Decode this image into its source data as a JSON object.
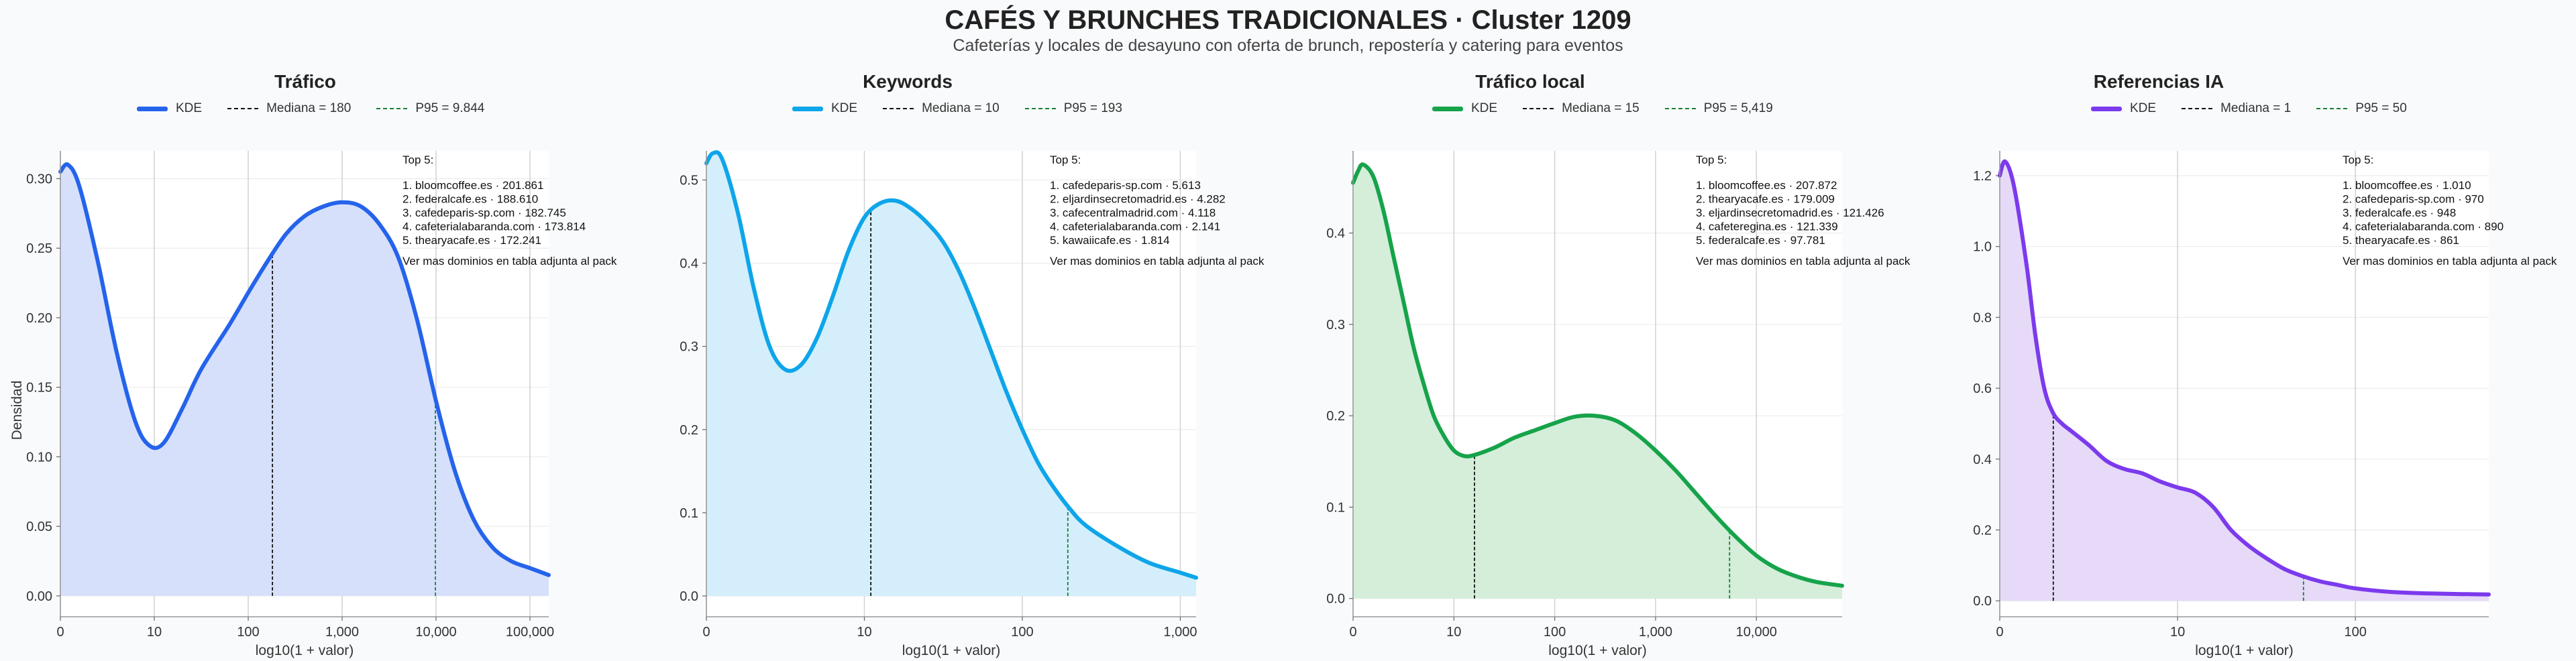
{
  "title": "CAFÉS Y BRUNCHES TRADICIONALES · Cluster 1209",
  "subtitle": "Cafeterías y locales de desayuno con oferta de brunch, repostería y catering para eventos",
  "ylabel": "Densidad",
  "xlabel": "log10(1 + valor)",
  "kde_label": "KDE",
  "annotation_header": "Top 5:",
  "annotation_footer": "Ver mas dominios en tabla adjunta al pack",
  "colors": {
    "median_line": "#111111",
    "p95_line": "#1a7f37",
    "grid": "#d4d4d4",
    "axis": "#999999"
  },
  "panels": [
    {
      "title": "Tráfico",
      "color": "#2563eb",
      "fill": "#d6e0fb",
      "median_label": "Mediana = 180",
      "p95_label": "P95 = 9.844",
      "top5": [
        "1. bloomcoffee.es · 201.861",
        "2. federalcafe.es · 188.610",
        "3. cafedeparis-sp.com · 182.745",
        "4. cafeterialabaranda.com · 173.814",
        "5. thearyacafe.es · 172.241"
      ]
    },
    {
      "title": "Keywords",
      "color": "#0ea5e9",
      "fill": "#d4effb",
      "median_label": "Mediana = 10",
      "p95_label": "P95 = 193",
      "top5": [
        "1. cafedeparis-sp.com · 5.613",
        "2. eljardinsecretomadrid.es · 4.282",
        "3. cafecentralmadrid.com · 4.118",
        "4. cafeterialabaranda.com · 2.141",
        "5. kawaiicafe.es · 1.814"
      ]
    },
    {
      "title": "Tráfico local",
      "color": "#16a34a",
      "fill": "#d4eeda",
      "median_label": "Mediana = 15",
      "p95_label": "P95 = 5,419",
      "top5": [
        "1. bloomcoffee.es · 207.872",
        "2. thearyacafe.es · 179.009",
        "3. eljardinsecretomadrid.es · 121.426",
        "4. cafeteregina.es · 121.339",
        "5. federalcafe.es · 97.781"
      ]
    },
    {
      "title": "Referencias IA",
      "color": "#7c3aed",
      "fill": "#e6daf8",
      "median_label": "Mediana = 1",
      "p95_label": "P95 = 50",
      "top5": [
        "1. bloomcoffee.es · 1.010",
        "2. cafedeparis-sp.com · 970",
        "3. federalcafe.es · 948",
        "4. cafeterialabaranda.com · 890",
        "5. thearyacafe.es · 861"
      ]
    }
  ],
  "chart_data": [
    {
      "type": "area",
      "title": "Tráfico",
      "xlabel": "log10(1 + valor)",
      "ylabel": "Densidad",
      "xlim": [
        0,
        5.2
      ],
      "ylim": [
        -0.015,
        0.32
      ],
      "x_ticks": [
        0,
        1,
        2,
        3,
        4,
        5
      ],
      "x_tick_labels": [
        "0",
        "10",
        "100",
        "1,000",
        "10,000",
        "100,000"
      ],
      "y_ticks": [
        0,
        0.05,
        0.1,
        0.15,
        0.2,
        0.25,
        0.3
      ],
      "y_tick_labels": [
        "0.00",
        "0.05",
        "0.10",
        "0.15",
        "0.20",
        "0.25",
        "0.30"
      ],
      "median_log": 2.258,
      "p95_log": 3.993,
      "series": [
        {
          "name": "KDE",
          "x": [
            0,
            0.08,
            0.2,
            0.4,
            0.6,
            0.8,
            0.95,
            1.1,
            1.3,
            1.5,
            1.8,
            2.0,
            2.2,
            2.4,
            2.6,
            2.8,
            3.0,
            3.2,
            3.4,
            3.6,
            3.8,
            4.0,
            4.2,
            4.4,
            4.6,
            4.8,
            5.0,
            5.2
          ],
          "y": [
            0.305,
            0.31,
            0.295,
            0.24,
            0.175,
            0.125,
            0.108,
            0.11,
            0.135,
            0.163,
            0.195,
            0.218,
            0.24,
            0.26,
            0.273,
            0.28,
            0.283,
            0.28,
            0.267,
            0.243,
            0.198,
            0.14,
            0.09,
            0.055,
            0.035,
            0.025,
            0.02,
            0.015
          ]
        }
      ]
    },
    {
      "type": "area",
      "title": "Keywords",
      "xlabel": "log10(1 + valor)",
      "xlim": [
        0,
        3.1
      ],
      "ylim": [
        -0.025,
        0.535
      ],
      "x_ticks": [
        0,
        1,
        2,
        3
      ],
      "x_tick_labels": [
        "0",
        "10",
        "100",
        "1,000"
      ],
      "y_ticks": [
        0,
        0.1,
        0.2,
        0.3,
        0.4,
        0.5
      ],
      "y_tick_labels": [
        "0.0",
        "0.1",
        "0.2",
        "0.3",
        "0.4",
        "0.5"
      ],
      "median_log": 1.041,
      "p95_log": 2.288,
      "series": [
        {
          "name": "KDE",
          "x": [
            0,
            0.04,
            0.1,
            0.2,
            0.3,
            0.4,
            0.5,
            0.6,
            0.7,
            0.8,
            0.9,
            1.0,
            1.1,
            1.2,
            1.3,
            1.4,
            1.5,
            1.6,
            1.7,
            1.8,
            1.9,
            2.0,
            2.1,
            2.2,
            2.3,
            2.4,
            2.6,
            2.8,
            3.0,
            3.1
          ],
          "y": [
            0.52,
            0.532,
            0.525,
            0.46,
            0.37,
            0.3,
            0.272,
            0.278,
            0.31,
            0.36,
            0.415,
            0.455,
            0.472,
            0.475,
            0.465,
            0.448,
            0.425,
            0.39,
            0.345,
            0.295,
            0.245,
            0.2,
            0.16,
            0.13,
            0.105,
            0.085,
            0.06,
            0.04,
            0.028,
            0.022
          ]
        }
      ]
    },
    {
      "type": "area",
      "title": "Tráfico local",
      "xlabel": "log10(1 + valor)",
      "xlim": [
        0,
        4.85
      ],
      "ylim": [
        -0.02,
        0.49
      ],
      "x_ticks": [
        0,
        1,
        2,
        3,
        4
      ],
      "x_tick_labels": [
        "0",
        "10",
        "100",
        "1,000",
        "10,000"
      ],
      "y_ticks": [
        0,
        0.1,
        0.2,
        0.3,
        0.4
      ],
      "y_tick_labels": [
        "0.0",
        "0.1",
        "0.2",
        "0.3",
        "0.4"
      ],
      "median_log": 1.204,
      "p95_log": 3.734,
      "series": [
        {
          "name": "KDE",
          "x": [
            0,
            0.05,
            0.1,
            0.2,
            0.3,
            0.4,
            0.5,
            0.6,
            0.7,
            0.8,
            0.9,
            1.0,
            1.1,
            1.2,
            1.4,
            1.6,
            1.8,
            2.0,
            2.2,
            2.4,
            2.6,
            2.8,
            3.0,
            3.2,
            3.4,
            3.6,
            3.8,
            4.0,
            4.2,
            4.4,
            4.6,
            4.85
          ],
          "y": [
            0.455,
            0.468,
            0.475,
            0.462,
            0.425,
            0.375,
            0.325,
            0.275,
            0.235,
            0.2,
            0.178,
            0.162,
            0.156,
            0.157,
            0.165,
            0.176,
            0.184,
            0.192,
            0.199,
            0.2,
            0.195,
            0.181,
            0.162,
            0.14,
            0.115,
            0.09,
            0.067,
            0.047,
            0.033,
            0.024,
            0.018,
            0.014
          ]
        }
      ]
    },
    {
      "type": "area",
      "title": "Referencias IA",
      "xlabel": "log10(1 + valor)",
      "xlim": [
        0,
        2.75
      ],
      "ylim": [
        -0.045,
        1.27
      ],
      "x_ticks": [
        0,
        1,
        2
      ],
      "x_tick_labels": [
        "0",
        "10",
        "100"
      ],
      "y_ticks": [
        0,
        0.2,
        0.4,
        0.6,
        0.8,
        1.0,
        1.2
      ],
      "y_tick_labels": [
        "0.0",
        "0.2",
        "0.4",
        "0.6",
        "0.8",
        "1.0",
        "1.2"
      ],
      "median_log": 0.301,
      "p95_log": 1.708,
      "series": [
        {
          "name": "KDE",
          "x": [
            0,
            0.03,
            0.08,
            0.15,
            0.2,
            0.25,
            0.3,
            0.35,
            0.4,
            0.5,
            0.6,
            0.7,
            0.8,
            0.9,
            1.0,
            1.1,
            1.2,
            1.3,
            1.4,
            1.5,
            1.6,
            1.7,
            1.8,
            1.9,
            2.0,
            2.2,
            2.4,
            2.6,
            2.75
          ],
          "y": [
            1.2,
            1.24,
            1.17,
            0.95,
            0.75,
            0.6,
            0.53,
            0.5,
            0.48,
            0.44,
            0.395,
            0.372,
            0.36,
            0.337,
            0.32,
            0.305,
            0.265,
            0.2,
            0.155,
            0.12,
            0.09,
            0.07,
            0.055,
            0.045,
            0.035,
            0.025,
            0.021,
            0.019,
            0.018
          ]
        }
      ]
    }
  ]
}
